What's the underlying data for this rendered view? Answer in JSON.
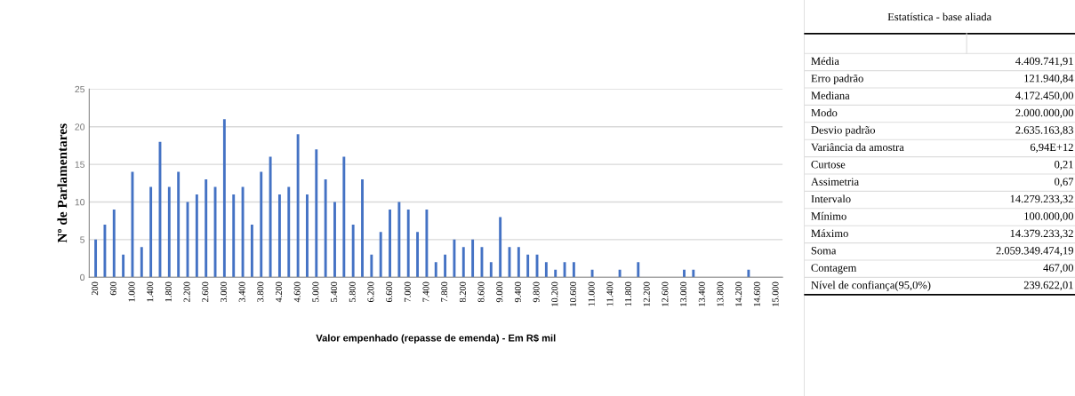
{
  "chart_data": [
    {
      "type": "bar",
      "xlabel": "Valor empenhado (repasse de emenda) - Em R$ mil",
      "ylabel": "Nº de Parlamentares",
      "categories": [
        "200",
        null,
        "600",
        null,
        "1.000",
        null,
        "1.400",
        null,
        "1.800",
        null,
        "2.200",
        null,
        "2.600",
        null,
        "3.000",
        null,
        "3.400",
        null,
        "3.800",
        null,
        "4.200",
        null,
        "4.600",
        null,
        "5.000",
        null,
        "5.400",
        null,
        "5.800",
        null,
        "6.200",
        null,
        "6.600",
        null,
        "7.000",
        null,
        "7.400",
        null,
        "7.800",
        null,
        "8.200",
        null,
        "8.600",
        null,
        "9.000",
        null,
        "9.400",
        null,
        "9.800",
        null,
        "10.200",
        null,
        "10.600",
        null,
        "11.000",
        null,
        "11.400",
        null,
        "11.800",
        null,
        "12.200",
        null,
        "12.600",
        null,
        "13.000",
        null,
        "13.400",
        null,
        "13.800",
        null,
        "14.200",
        null,
        "14.600",
        null,
        "15.000"
      ],
      "values": [
        5,
        7,
        9,
        3,
        14,
        4,
        12,
        18,
        12,
        14,
        10,
        11,
        13,
        12,
        21,
        11,
        12,
        7,
        14,
        16,
        11,
        12,
        19,
        11,
        17,
        13,
        10,
        16,
        7,
        13,
        3,
        6,
        9,
        10,
        9,
        6,
        9,
        2,
        3,
        5,
        4,
        5,
        4,
        2,
        8,
        4,
        4,
        3,
        3,
        2,
        1,
        2,
        2,
        0,
        1,
        0,
        0,
        1,
        0,
        2,
        0,
        0,
        0,
        0,
        1,
        1,
        0,
        0,
        0,
        0,
        0,
        1,
        0,
        0,
        0
      ],
      "color": "#4472c4",
      "ylim": [
        0,
        25
      ],
      "yticks": [
        0,
        5,
        10,
        15,
        20,
        25
      ],
      "grid": "y"
    },
    {
      "type": "other",
      "title": "Estatística - base aliada",
      "categories": [
        "Média",
        "Erro padrão",
        "Mediana",
        "Modo",
        "Desvio padrão",
        "Variância da amostra",
        "Curtose",
        "Assimetria",
        "Intervalo",
        "Mínimo",
        "Máximo",
        "Soma",
        "Contagem",
        "Nível de confiança(95,0%)"
      ],
      "value_labels": [
        "4.409.741,91",
        "121.940,84",
        "4.172.450,00",
        "2.000.000,00",
        "2.635.163,83",
        "6,94E+12",
        "0,21",
        "0,67",
        "14.279.233,32",
        "100.000,00",
        "14.379.233,32",
        "2.059.349.474,19",
        "467,00",
        "239.622,01"
      ]
    }
  ]
}
